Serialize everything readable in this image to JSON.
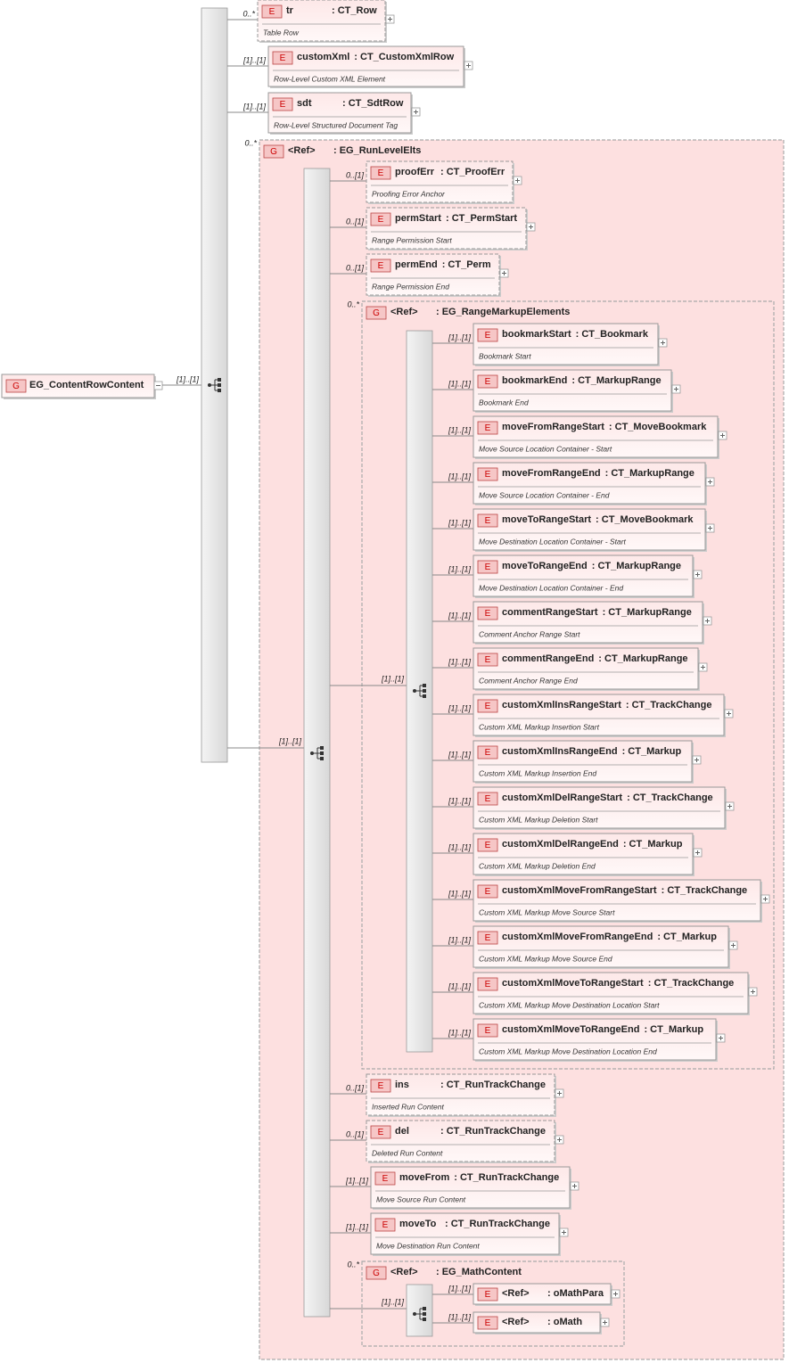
{
  "root": {
    "badge": "G",
    "name": "EG_ContentRowContent",
    "cardinality": "[1]..[1]"
  },
  "children": [
    {
      "badge": "E",
      "name": "tr",
      "type": ": CT_Row",
      "description": "Table Row",
      "cardinality": "0..*"
    },
    {
      "badge": "E",
      "name": "customXml",
      "type": ": CT_CustomXmlRow",
      "description": "Row-Level Custom XML Element",
      "cardinality": "[1]..[1]"
    },
    {
      "badge": "E",
      "name": "sdt",
      "type": ": CT_SdtRow",
      "description": "Row-Level Structured Document Tag",
      "cardinality": "[1]..[1]"
    },
    {
      "badge": "G",
      "name": "<Ref>",
      "type": ": EG_RunLevelElts",
      "cardinality": "0..*",
      "connector": "[1]..[1]",
      "children": [
        {
          "badge": "E",
          "name": "proofErr",
          "type": ": CT_ProofErr",
          "description": "Proofing Error Anchor",
          "cardinality": "0..[1]"
        },
        {
          "badge": "E",
          "name": "permStart",
          "type": ": CT_PermStart",
          "description": "Range Permission Start",
          "cardinality": "0..[1]"
        },
        {
          "badge": "E",
          "name": "permEnd",
          "type": ": CT_Perm",
          "description": "Range Permission End",
          "cardinality": "0..[1]"
        },
        {
          "badge": "G",
          "name": "<Ref>",
          "type": ": EG_RangeMarkupElements",
          "cardinality": "0..*",
          "connector": "[1]..[1]",
          "children": [
            {
              "badge": "E",
              "name": "bookmarkStart",
              "type": ": CT_Bookmark",
              "description": "Bookmark Start",
              "cardinality": "[1]..[1]"
            },
            {
              "badge": "E",
              "name": "bookmarkEnd",
              "type": ": CT_MarkupRange",
              "description": "Bookmark End",
              "cardinality": "[1]..[1]"
            },
            {
              "badge": "E",
              "name": "moveFromRangeStart",
              "type": ": CT_MoveBookmark",
              "description": "Move Source Location Container - Start",
              "cardinality": "[1]..[1]"
            },
            {
              "badge": "E",
              "name": "moveFromRangeEnd",
              "type": ": CT_MarkupRange",
              "description": "Move Source Location Container - End",
              "cardinality": "[1]..[1]"
            },
            {
              "badge": "E",
              "name": "moveToRangeStart",
              "type": ": CT_MoveBookmark",
              "description": "Move Destination Location Container - Start",
              "cardinality": "[1]..[1]"
            },
            {
              "badge": "E",
              "name": "moveToRangeEnd",
              "type": ": CT_MarkupRange",
              "description": "Move Destination Location Container - End",
              "cardinality": "[1]..[1]"
            },
            {
              "badge": "E",
              "name": "commentRangeStart",
              "type": ": CT_MarkupRange",
              "description": "Comment Anchor Range Start",
              "cardinality": "[1]..[1]"
            },
            {
              "badge": "E",
              "name": "commentRangeEnd",
              "type": ": CT_MarkupRange",
              "description": "Comment Anchor Range End",
              "cardinality": "[1]..[1]"
            },
            {
              "badge": "E",
              "name": "customXmlInsRangeStart",
              "type": ": CT_TrackChange",
              "description": "Custom XML Markup Insertion Start",
              "cardinality": "[1]..[1]"
            },
            {
              "badge": "E",
              "name": "customXmlInsRangeEnd",
              "type": ": CT_Markup",
              "description": "Custom XML Markup Insertion End",
              "cardinality": "[1]..[1]"
            },
            {
              "badge": "E",
              "name": "customXmlDelRangeStart",
              "type": ": CT_TrackChange",
              "description": "Custom XML Markup Deletion Start",
              "cardinality": "[1]..[1]"
            },
            {
              "badge": "E",
              "name": "customXmlDelRangeEnd",
              "type": ": CT_Markup",
              "description": "Custom XML Markup Deletion End",
              "cardinality": "[1]..[1]"
            },
            {
              "badge": "E",
              "name": "customXmlMoveFromRangeStart",
              "type": ": CT_TrackChange",
              "description": "Custom XML Markup Move Source Start",
              "cardinality": "[1]..[1]"
            },
            {
              "badge": "E",
              "name": "customXmlMoveFromRangeEnd",
              "type": ": CT_Markup",
              "description": "Custom XML Markup Move Source End",
              "cardinality": "[1]..[1]"
            },
            {
              "badge": "E",
              "name": "customXmlMoveToRangeStart",
              "type": ": CT_TrackChange",
              "description": "Custom XML Markup Move Destination Location Start",
              "cardinality": "[1]..[1]"
            },
            {
              "badge": "E",
              "name": "customXmlMoveToRangeEnd",
              "type": ": CT_Markup",
              "description": "Custom XML Markup Move Destination Location End",
              "cardinality": "[1]..[1]"
            }
          ]
        },
        {
          "badge": "E",
          "name": "ins",
          "type": ": CT_RunTrackChange",
          "description": "Inserted Run Content",
          "cardinality": "0..[1]"
        },
        {
          "badge": "E",
          "name": "del",
          "type": ": CT_RunTrackChange",
          "description": "Deleted Run Content",
          "cardinality": "0..[1]"
        },
        {
          "badge": "E",
          "name": "moveFrom",
          "type": ": CT_RunTrackChange",
          "description": "Move Source Run Content",
          "cardinality": "[1]..[1]"
        },
        {
          "badge": "E",
          "name": "moveTo",
          "type": ": CT_RunTrackChange",
          "description": "Move Destination Run Content",
          "cardinality": "[1]..[1]"
        },
        {
          "badge": "G",
          "name": "<Ref>",
          "type": ": EG_MathContent",
          "cardinality": "0..*",
          "connector": "[1]..[1]",
          "children": [
            {
              "badge": "E",
              "name": "<Ref>",
              "type": ": oMathPara",
              "cardinality": "[1]..[1]"
            },
            {
              "badge": "E",
              "name": "<Ref>",
              "type": ": oMath",
              "cardinality": "[1]..[1]"
            }
          ]
        }
      ]
    }
  ]
}
